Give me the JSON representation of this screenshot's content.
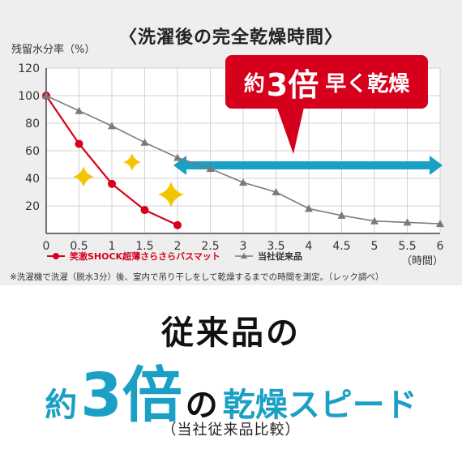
{
  "header": {
    "title": "〈洗濯後の完全乾燥時間〉"
  },
  "callout": {
    "prefix": "約",
    "number": "3倍",
    "suffix": "早く乾燥"
  },
  "footnote": "※洗濯機で洗濯（脱水3分）後、室内で吊り干しをして乾燥するまでの時間を測定。（レック調べ）",
  "headline": "従来品の",
  "speed_line": {
    "prefix": "約",
    "number": "3倍",
    "particle": "の",
    "suffix": "乾燥スピード"
  },
  "comparison_note": "（当社従来品比較）",
  "colors": {
    "product": "#d6001c",
    "conventional": "#7a7a7a",
    "accent": "#1aa0c4"
  },
  "chart_data": {
    "type": "line",
    "ylabel": "残留水分率（%）",
    "xlabel": "（時間）",
    "xlim": [
      0,
      6
    ],
    "ylim": [
      0,
      120
    ],
    "xticks": [
      "0",
      "0.5",
      "1",
      "1.5",
      "2",
      "2.5",
      "3",
      "3.5",
      "4",
      "4.5",
      "5",
      "5.5",
      "6"
    ],
    "yticks": [
      "20",
      "40",
      "60",
      "80",
      "100",
      "120"
    ],
    "grid": true,
    "legend": "bottom",
    "series": [
      {
        "name": "笑激SHOCK超薄さらさらバスマット",
        "marker": "circle",
        "color": "#d6001c",
        "x": [
          0,
          0.5,
          1,
          1.5,
          2
        ],
        "y": [
          100,
          65,
          36,
          17,
          6
        ]
      },
      {
        "name": "当社従来品",
        "marker": "triangle",
        "color": "#7a7a7a",
        "x": [
          0,
          0.5,
          1,
          1.5,
          2,
          2.5,
          3,
          3.5,
          4,
          4.5,
          5,
          5.5,
          6
        ],
        "y": [
          100,
          89,
          78,
          66,
          55,
          47,
          37,
          30,
          18,
          13,
          9,
          8,
          7
        ]
      }
    ]
  }
}
